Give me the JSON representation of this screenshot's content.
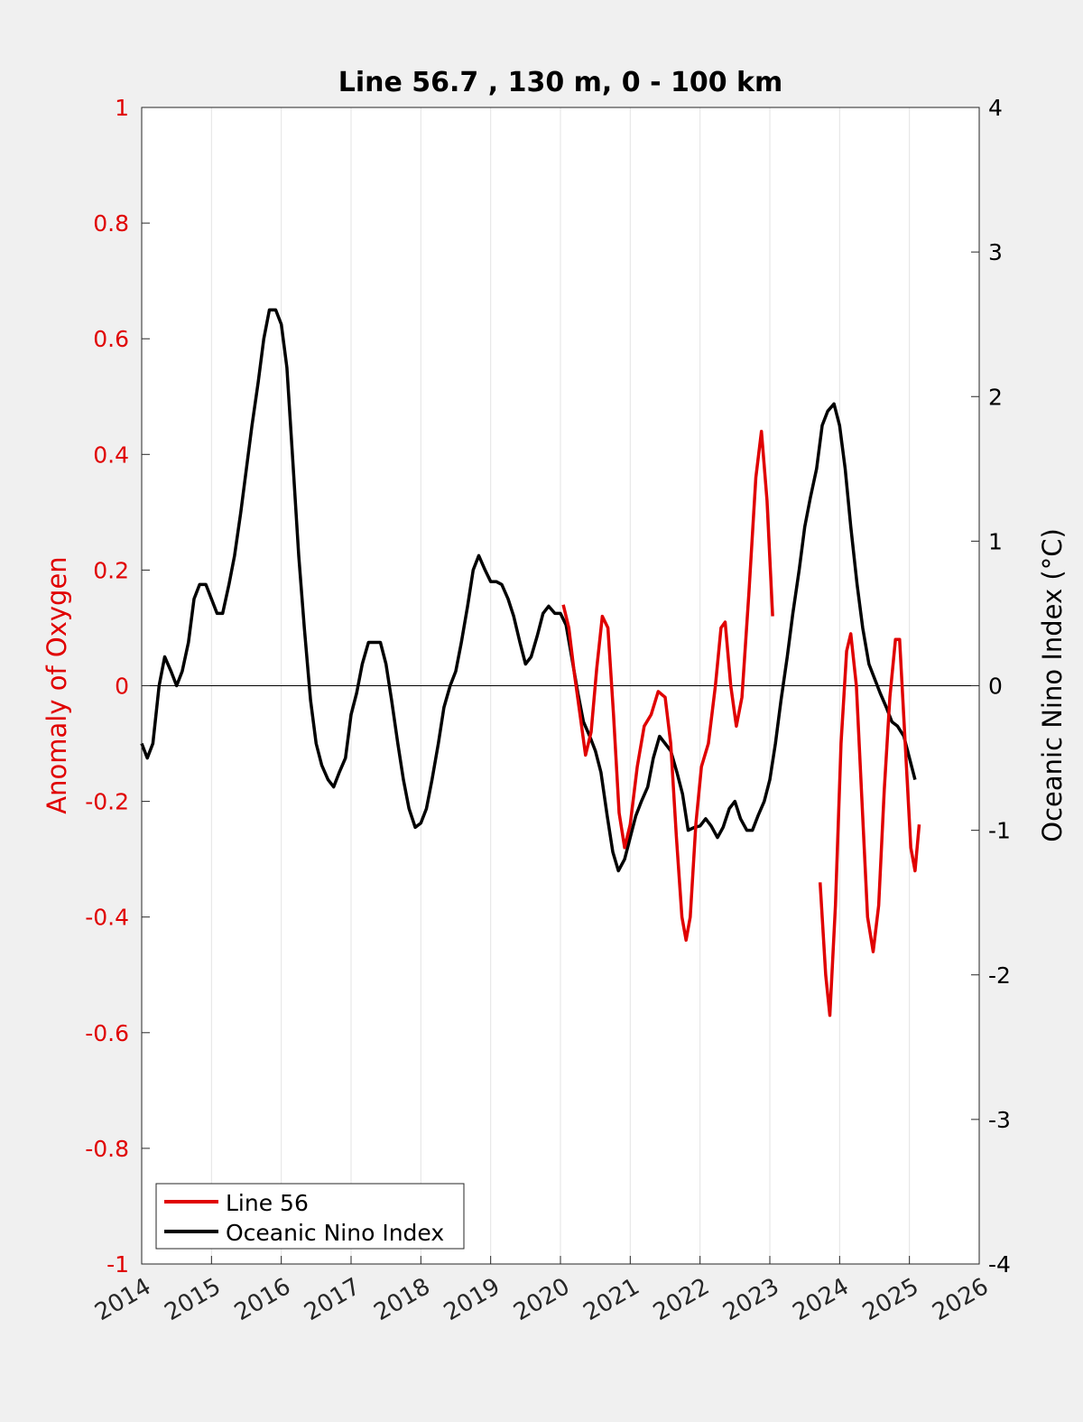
{
  "chart_data": {
    "type": "line",
    "title": "Line 56.7 , 130 m, 0 - 100 km",
    "ylabel": "Anomaly of Oxygen",
    "y2label": "Oceanic Nino Index (°C)",
    "xlabel": "",
    "xlim": [
      2014,
      2026
    ],
    "ylim": [
      -1,
      1
    ],
    "y2lim": [
      -4,
      4
    ],
    "x_ticks": [
      "2014",
      "2015",
      "2016",
      "2017",
      "2018",
      "2019",
      "2020",
      "2021",
      "2022",
      "2023",
      "2024",
      "2025",
      "2026"
    ],
    "y_ticks": [
      "-1",
      "-0.8",
      "-0.6",
      "-0.4",
      "-0.2",
      "0",
      "0.2",
      "0.4",
      "0.6",
      "0.8",
      "1"
    ],
    "y2_ticks": [
      "-4",
      "-3",
      "-2",
      "-1",
      "0",
      "1",
      "2",
      "3",
      "4"
    ],
    "grid": "vertical",
    "legend_position": "bottom-left",
    "colors": {
      "line56": "#e00000",
      "oni": "#000000",
      "left_axis": "#e00000",
      "right_axis": "#000000"
    },
    "series": [
      {
        "name": "Line 56",
        "axis": "left",
        "color": "#e00000",
        "segments": [
          [
            [
              2020.04,
              0.14
            ],
            [
              2020.12,
              0.1
            ],
            [
              2020.2,
              0.02
            ],
            [
              2020.28,
              -0.05
            ],
            [
              2020.36,
              -0.12
            ],
            [
              2020.44,
              -0.08
            ],
            [
              2020.52,
              0.03
            ],
            [
              2020.6,
              0.12
            ],
            [
              2020.68,
              0.1
            ],
            [
              2020.76,
              -0.05
            ],
            [
              2020.84,
              -0.22
            ],
            [
              2020.92,
              -0.28
            ],
            [
              2021.0,
              -0.24
            ],
            [
              2021.1,
              -0.14
            ],
            [
              2021.2,
              -0.07
            ],
            [
              2021.3,
              -0.05
            ],
            [
              2021.4,
              -0.01
            ],
            [
              2021.5,
              -0.02
            ],
            [
              2021.58,
              -0.1
            ],
            [
              2021.66,
              -0.26
            ],
            [
              2021.74,
              -0.4
            ],
            [
              2021.8,
              -0.44
            ],
            [
              2021.86,
              -0.4
            ],
            [
              2021.94,
              -0.24
            ],
            [
              2022.02,
              -0.14
            ],
            [
              2022.12,
              -0.1
            ],
            [
              2022.22,
              0.0
            ],
            [
              2022.3,
              0.1
            ],
            [
              2022.36,
              0.11
            ],
            [
              2022.44,
              0.0
            ],
            [
              2022.52,
              -0.07
            ],
            [
              2022.6,
              -0.02
            ],
            [
              2022.7,
              0.16
            ],
            [
              2022.8,
              0.36
            ],
            [
              2022.88,
              0.44
            ],
            [
              2022.96,
              0.32
            ],
            [
              2023.04,
              0.12
            ]
          ],
          [
            [
              2023.72,
              -0.34
            ],
            [
              2023.8,
              -0.5
            ],
            [
              2023.86,
              -0.57
            ],
            [
              2023.94,
              -0.38
            ],
            [
              2024.02,
              -0.1
            ],
            [
              2024.1,
              0.06
            ],
            [
              2024.16,
              0.09
            ],
            [
              2024.24,
              0.0
            ],
            [
              2024.32,
              -0.2
            ],
            [
              2024.4,
              -0.4
            ],
            [
              2024.48,
              -0.46
            ],
            [
              2024.56,
              -0.38
            ],
            [
              2024.64,
              -0.18
            ],
            [
              2024.72,
              -0.02
            ],
            [
              2024.8,
              0.08
            ],
            [
              2024.86,
              0.08
            ],
            [
              2024.94,
              -0.1
            ],
            [
              2025.02,
              -0.28
            ],
            [
              2025.08,
              -0.32
            ],
            [
              2025.14,
              -0.24
            ]
          ]
        ]
      },
      {
        "name": "Oceanic Nino Index",
        "axis": "right",
        "color": "#000000",
        "points": [
          [
            2014.0,
            -0.4
          ],
          [
            2014.08,
            -0.5
          ],
          [
            2014.16,
            -0.4
          ],
          [
            2014.25,
            0.0
          ],
          [
            2014.33,
            0.2
          ],
          [
            2014.42,
            0.1
          ],
          [
            2014.5,
            0.0
          ],
          [
            2014.58,
            0.1
          ],
          [
            2014.67,
            0.3
          ],
          [
            2014.75,
            0.6
          ],
          [
            2014.83,
            0.7
          ],
          [
            2014.92,
            0.7
          ],
          [
            2015.0,
            0.6
          ],
          [
            2015.08,
            0.5
          ],
          [
            2015.16,
            0.5
          ],
          [
            2015.25,
            0.7
          ],
          [
            2015.33,
            0.9
          ],
          [
            2015.42,
            1.2
          ],
          [
            2015.5,
            1.5
          ],
          [
            2015.58,
            1.8
          ],
          [
            2015.67,
            2.1
          ],
          [
            2015.75,
            2.4
          ],
          [
            2015.83,
            2.6
          ],
          [
            2015.92,
            2.6
          ],
          [
            2016.0,
            2.5
          ],
          [
            2016.08,
            2.2
          ],
          [
            2016.16,
            1.6
          ],
          [
            2016.25,
            0.9
          ],
          [
            2016.33,
            0.4
          ],
          [
            2016.42,
            -0.1
          ],
          [
            2016.5,
            -0.4
          ],
          [
            2016.58,
            -0.55
          ],
          [
            2016.67,
            -0.65
          ],
          [
            2016.75,
            -0.7
          ],
          [
            2016.83,
            -0.6
          ],
          [
            2016.92,
            -0.5
          ],
          [
            2017.0,
            -0.2
          ],
          [
            2017.08,
            -0.05
          ],
          [
            2017.16,
            0.15
          ],
          [
            2017.25,
            0.3
          ],
          [
            2017.33,
            0.3
          ],
          [
            2017.42,
            0.3
          ],
          [
            2017.5,
            0.15
          ],
          [
            2017.58,
            -0.1
          ],
          [
            2017.67,
            -0.4
          ],
          [
            2017.75,
            -0.65
          ],
          [
            2017.83,
            -0.85
          ],
          [
            2017.92,
            -0.98
          ],
          [
            2018.0,
            -0.95
          ],
          [
            2018.08,
            -0.85
          ],
          [
            2018.16,
            -0.65
          ],
          [
            2018.25,
            -0.4
          ],
          [
            2018.33,
            -0.15
          ],
          [
            2018.42,
            0.0
          ],
          [
            2018.5,
            0.1
          ],
          [
            2018.58,
            0.3
          ],
          [
            2018.67,
            0.55
          ],
          [
            2018.75,
            0.8
          ],
          [
            2018.83,
            0.9
          ],
          [
            2018.92,
            0.8
          ],
          [
            2019.0,
            0.72
          ],
          [
            2019.08,
            0.72
          ],
          [
            2019.16,
            0.7
          ],
          [
            2019.25,
            0.6
          ],
          [
            2019.33,
            0.48
          ],
          [
            2019.42,
            0.3
          ],
          [
            2019.5,
            0.15
          ],
          [
            2019.58,
            0.2
          ],
          [
            2019.67,
            0.35
          ],
          [
            2019.75,
            0.5
          ],
          [
            2019.83,
            0.55
          ],
          [
            2019.92,
            0.5
          ],
          [
            2020.0,
            0.5
          ],
          [
            2020.08,
            0.42
          ],
          [
            2020.16,
            0.2
          ],
          [
            2020.25,
            -0.05
          ],
          [
            2020.33,
            -0.25
          ],
          [
            2020.42,
            -0.35
          ],
          [
            2020.5,
            -0.45
          ],
          [
            2020.58,
            -0.6
          ],
          [
            2020.67,
            -0.9
          ],
          [
            2020.75,
            -1.15
          ],
          [
            2020.83,
            -1.28
          ],
          [
            2020.92,
            -1.2
          ],
          [
            2021.0,
            -1.05
          ],
          [
            2021.08,
            -0.9
          ],
          [
            2021.16,
            -0.8
          ],
          [
            2021.25,
            -0.7
          ],
          [
            2021.33,
            -0.5
          ],
          [
            2021.42,
            -0.35
          ],
          [
            2021.5,
            -0.4
          ],
          [
            2021.58,
            -0.45
          ],
          [
            2021.67,
            -0.6
          ],
          [
            2021.75,
            -0.75
          ],
          [
            2021.83,
            -1.0
          ],
          [
            2021.92,
            -0.98
          ],
          [
            2022.0,
            -0.97
          ],
          [
            2022.08,
            -0.92
          ],
          [
            2022.16,
            -0.97
          ],
          [
            2022.25,
            -1.05
          ],
          [
            2022.33,
            -0.98
          ],
          [
            2022.42,
            -0.85
          ],
          [
            2022.5,
            -0.8
          ],
          [
            2022.58,
            -0.92
          ],
          [
            2022.67,
            -1.0
          ],
          [
            2022.75,
            -1.0
          ],
          [
            2022.83,
            -0.9
          ],
          [
            2022.92,
            -0.8
          ],
          [
            2023.0,
            -0.65
          ],
          [
            2023.08,
            -0.4
          ],
          [
            2023.16,
            -0.1
          ],
          [
            2023.25,
            0.2
          ],
          [
            2023.33,
            0.5
          ],
          [
            2023.42,
            0.8
          ],
          [
            2023.5,
            1.1
          ],
          [
            2023.58,
            1.3
          ],
          [
            2023.67,
            1.5
          ],
          [
            2023.75,
            1.8
          ],
          [
            2023.83,
            1.9
          ],
          [
            2023.92,
            1.95
          ],
          [
            2024.0,
            1.8
          ],
          [
            2024.08,
            1.5
          ],
          [
            2024.16,
            1.1
          ],
          [
            2024.25,
            0.7
          ],
          [
            2024.33,
            0.4
          ],
          [
            2024.42,
            0.15
          ],
          [
            2024.5,
            0.05
          ],
          [
            2024.58,
            -0.05
          ],
          [
            2024.67,
            -0.15
          ],
          [
            2024.75,
            -0.25
          ],
          [
            2024.83,
            -0.28
          ],
          [
            2024.92,
            -0.35
          ],
          [
            2025.0,
            -0.5
          ],
          [
            2025.08,
            -0.65
          ]
        ]
      }
    ]
  }
}
